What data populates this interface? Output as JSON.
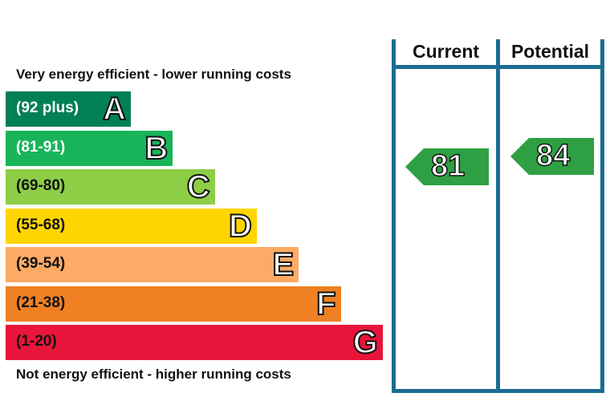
{
  "chart_data": {
    "type": "bar",
    "caption_top": "Very energy efficient - lower running costs",
    "caption_bottom": "Not energy efficient - higher running costs",
    "columns": [
      "Current",
      "Potential"
    ],
    "bands": [
      {
        "range": "(92 plus)",
        "letter": "A",
        "color": "#008054",
        "scale": 1
      },
      {
        "range": "(81-91)",
        "letter": "B",
        "color": "#19b459",
        "scale": 2
      },
      {
        "range": "(69-80)",
        "letter": "C",
        "color": "#8dce46",
        "scale": 3
      },
      {
        "range": "(55-68)",
        "letter": "D",
        "color": "#ffd500",
        "scale": 4
      },
      {
        "range": "(39-54)",
        "letter": "E",
        "color": "#fcaa65",
        "scale": 5
      },
      {
        "range": "(21-38)",
        "letter": "F",
        "color": "#ef8023",
        "scale": 6
      },
      {
        "range": "(1-20)",
        "letter": "G",
        "color": "#e9153b",
        "scale": 7
      }
    ],
    "ratings": [
      {
        "column": "Current",
        "value": 81,
        "band": "B",
        "color": "#2ea043"
      },
      {
        "column": "Potential",
        "value": 84,
        "band": "B",
        "color": "#2ea043"
      }
    ]
  }
}
